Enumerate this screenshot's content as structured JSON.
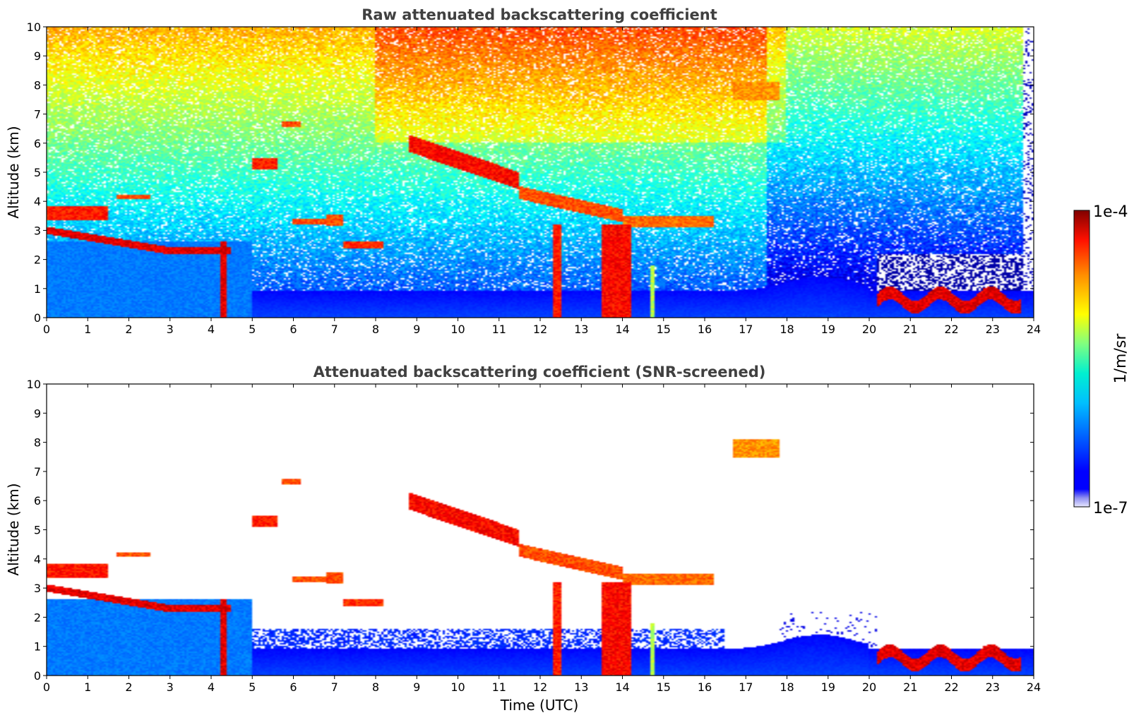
{
  "chart_data": [
    {
      "type": "heatmap",
      "title": "Raw attenuated backscattering coefficient",
      "xlabel": "",
      "ylabel": "Altitude (km)",
      "xlim": [
        0,
        24
      ],
      "ylim": [
        0,
        10
      ],
      "x_ticks": [
        "0",
        "1",
        "2",
        "3",
        "4",
        "5",
        "6",
        "7",
        "8",
        "9",
        "10",
        "11",
        "12",
        "13",
        "14",
        "15",
        "16",
        "17",
        "18",
        "19",
        "20",
        "21",
        "22",
        "23",
        "24"
      ],
      "y_ticks": [
        "0",
        "1",
        "2",
        "3",
        "4",
        "5",
        "6",
        "7",
        "8",
        "9",
        "10"
      ],
      "screened": false,
      "features": [
        {
          "t_start": 0.0,
          "t_end": 4.5,
          "alt": 2.3,
          "thickness": 0.25,
          "level": 0.95
        },
        {
          "t_start": 0.0,
          "t_end": 1.5,
          "alt": 3.6,
          "thickness": 0.5,
          "level": 0.9
        },
        {
          "t_start": 1.7,
          "t_end": 2.5,
          "alt": 4.15,
          "thickness": 0.15,
          "level": 0.85
        },
        {
          "t_start": 5.0,
          "t_end": 5.6,
          "alt": 5.3,
          "thickness": 0.4,
          "level": 0.9
        },
        {
          "t_start": 5.7,
          "t_end": 6.2,
          "alt": 6.65,
          "thickness": 0.15,
          "level": 0.85
        },
        {
          "t_start": 6.0,
          "t_end": 6.8,
          "alt": 3.3,
          "thickness": 0.2,
          "level": 0.85
        },
        {
          "t_start": 6.8,
          "t_end": 7.2,
          "alt": 3.35,
          "thickness": 0.4,
          "level": 0.85
        },
        {
          "t_start": 7.2,
          "t_end": 8.2,
          "alt": 2.5,
          "thickness": 0.2,
          "level": 0.88
        },
        {
          "t_start": 8.8,
          "t_end": 11.5,
          "alt": 5.6,
          "thickness": 0.6,
          "level": 0.92
        },
        {
          "t_start": 11.5,
          "t_end": 14.0,
          "alt": 3.8,
          "thickness": 0.45,
          "level": 0.85
        },
        {
          "t_start": 14.0,
          "t_end": 16.2,
          "alt": 3.3,
          "thickness": 0.4,
          "level": 0.82
        },
        {
          "t_start": 16.7,
          "t_end": 17.8,
          "alt": 7.8,
          "thickness": 0.6,
          "level": 0.78
        },
        {
          "t_start": 20.2,
          "t_end": 23.7,
          "alt": 0.6,
          "thickness": 0.45,
          "level": 0.95
        }
      ],
      "precipitation": [
        {
          "t_start": 4.2,
          "t_end": 4.4,
          "top": 2.6,
          "level": 0.95
        },
        {
          "t_start": 12.3,
          "t_end": 12.5,
          "top": 3.2,
          "level": 0.9
        },
        {
          "t_start": 13.5,
          "t_end": 14.2,
          "top": 3.2,
          "level": 0.92
        },
        {
          "t_start": 14.7,
          "t_end": 14.8,
          "top": 1.8,
          "level": 0.6
        }
      ]
    },
    {
      "type": "heatmap",
      "title": "Attenuated backscattering coefficient (SNR-screened)",
      "xlabel": "Time (UTC)",
      "ylabel": "Altitude (km)",
      "xlim": [
        0,
        24
      ],
      "ylim": [
        0,
        10
      ],
      "x_ticks": [
        "0",
        "1",
        "2",
        "3",
        "4",
        "5",
        "6",
        "7",
        "8",
        "9",
        "10",
        "11",
        "12",
        "13",
        "14",
        "15",
        "16",
        "17",
        "18",
        "19",
        "20",
        "21",
        "22",
        "23",
        "24"
      ],
      "y_ticks": [
        "0",
        "1",
        "2",
        "3",
        "4",
        "5",
        "6",
        "7",
        "8",
        "9",
        "10"
      ],
      "screened": true
    }
  ],
  "colorbar": {
    "colormap": "jet",
    "min_label": "1e-7",
    "max_label": "1e-4",
    "label": "1/m/sr",
    "scale": "log"
  },
  "colors": {
    "title": "#404040",
    "axis": "#000000",
    "background": "#ffffff"
  }
}
